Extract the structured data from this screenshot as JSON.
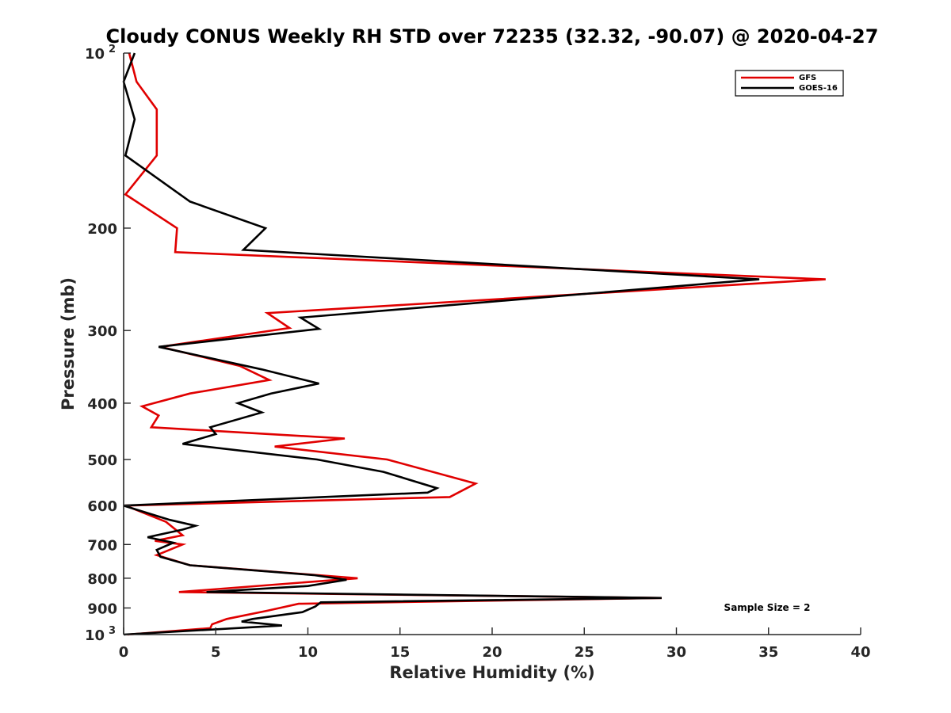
{
  "chart_data": {
    "type": "line",
    "title": "Cloudy CONUS Weekly RH STD over 72235 (32.32, -90.07) @ 2020-04-27",
    "xlabel": "Relative Humidity (%)",
    "ylabel": "Pressure (mb)",
    "xlim": [
      0,
      40
    ],
    "ylim": [
      100,
      1000
    ],
    "yscale": "log",
    "yreversed": true,
    "xticks": [
      "0",
      "5",
      "10",
      "15",
      "20",
      "25",
      "30",
      "35",
      "40"
    ],
    "xtick_values": [
      0,
      5,
      10,
      15,
      20,
      25,
      30,
      35,
      40
    ],
    "yticks": [
      {
        "value": 100,
        "label": "10",
        "exp": "2"
      },
      {
        "value": 200,
        "label": "200",
        "exp": ""
      },
      {
        "value": 300,
        "label": "300",
        "exp": ""
      },
      {
        "value": 400,
        "label": "400",
        "exp": ""
      },
      {
        "value": 500,
        "label": "500",
        "exp": ""
      },
      {
        "value": 600,
        "label": "600",
        "exp": ""
      },
      {
        "value": 700,
        "label": "700",
        "exp": ""
      },
      {
        "value": 800,
        "label": "800",
        "exp": ""
      },
      {
        "value": 900,
        "label": "900",
        "exp": ""
      },
      {
        "value": 1000,
        "label": "10",
        "exp": "3"
      }
    ],
    "series": [
      {
        "name": "GFS",
        "color": "#e00000",
        "points": [
          [
            0.3,
            100
          ],
          [
            0.7,
            112
          ],
          [
            1.8,
            125
          ],
          [
            1.8,
            150
          ],
          [
            0.1,
            175
          ],
          [
            2.9,
            200
          ],
          [
            2.8,
            220
          ],
          [
            38.1,
            245
          ],
          [
            7.8,
            280
          ],
          [
            9.0,
            297
          ],
          [
            2.0,
            320
          ],
          [
            6.3,
            345
          ],
          [
            7.9,
            365
          ],
          [
            3.6,
            385
          ],
          [
            1.0,
            405
          ],
          [
            1.9,
            420
          ],
          [
            1.5,
            440
          ],
          [
            12.0,
            460
          ],
          [
            8.2,
            475
          ],
          [
            14.3,
            500
          ],
          [
            19.1,
            550
          ],
          [
            17.7,
            580
          ],
          [
            0.1,
            600
          ],
          [
            2.3,
            640
          ],
          [
            3.2,
            675
          ],
          [
            1.7,
            690
          ],
          [
            3.2,
            700
          ],
          [
            1.8,
            730
          ],
          [
            3.6,
            760
          ],
          [
            12.7,
            800
          ],
          [
            3.0,
            845
          ],
          [
            29.2,
            865
          ],
          [
            9.5,
            885
          ],
          [
            7.8,
            910
          ],
          [
            5.6,
            940
          ],
          [
            4.8,
            960
          ],
          [
            4.7,
            975
          ],
          [
            0.2,
            1000
          ]
        ]
      },
      {
        "name": "GOES-16",
        "color": "#000000",
        "points": [
          [
            0.6,
            100
          ],
          [
            0.0,
            112
          ],
          [
            0.6,
            130
          ],
          [
            0.1,
            150
          ],
          [
            3.6,
            180
          ],
          [
            7.7,
            200
          ],
          [
            6.5,
            218
          ],
          [
            34.5,
            245
          ],
          [
            9.6,
            285
          ],
          [
            10.6,
            298
          ],
          [
            1.9,
            320
          ],
          [
            7.5,
            350
          ],
          [
            10.6,
            370
          ],
          [
            8.0,
            385
          ],
          [
            6.2,
            400
          ],
          [
            7.5,
            415
          ],
          [
            4.7,
            440
          ],
          [
            5.0,
            452
          ],
          [
            3.2,
            470
          ],
          [
            10.5,
            500
          ],
          [
            14.1,
            525
          ],
          [
            17.0,
            560
          ],
          [
            16.5,
            570
          ],
          [
            0.0,
            600
          ],
          [
            2.5,
            635
          ],
          [
            3.9,
            650
          ],
          [
            3.2,
            660
          ],
          [
            1.3,
            680
          ],
          [
            2.7,
            695
          ],
          [
            1.8,
            715
          ],
          [
            2.0,
            735
          ],
          [
            3.6,
            760
          ],
          [
            10.3,
            790
          ],
          [
            12.1,
            805
          ],
          [
            10.0,
            825
          ],
          [
            4.5,
            845
          ],
          [
            29.2,
            865
          ],
          [
            10.7,
            880
          ],
          [
            10.4,
            895
          ],
          [
            9.7,
            915
          ],
          [
            7.0,
            940
          ],
          [
            6.4,
            950
          ],
          [
            8.6,
            965
          ],
          [
            0.0,
            1000
          ]
        ]
      }
    ],
    "legend": {
      "placement": "top-right",
      "entries": [
        "GFS",
        "GOES-16"
      ]
    },
    "annotation": "Sample Size = 2"
  }
}
